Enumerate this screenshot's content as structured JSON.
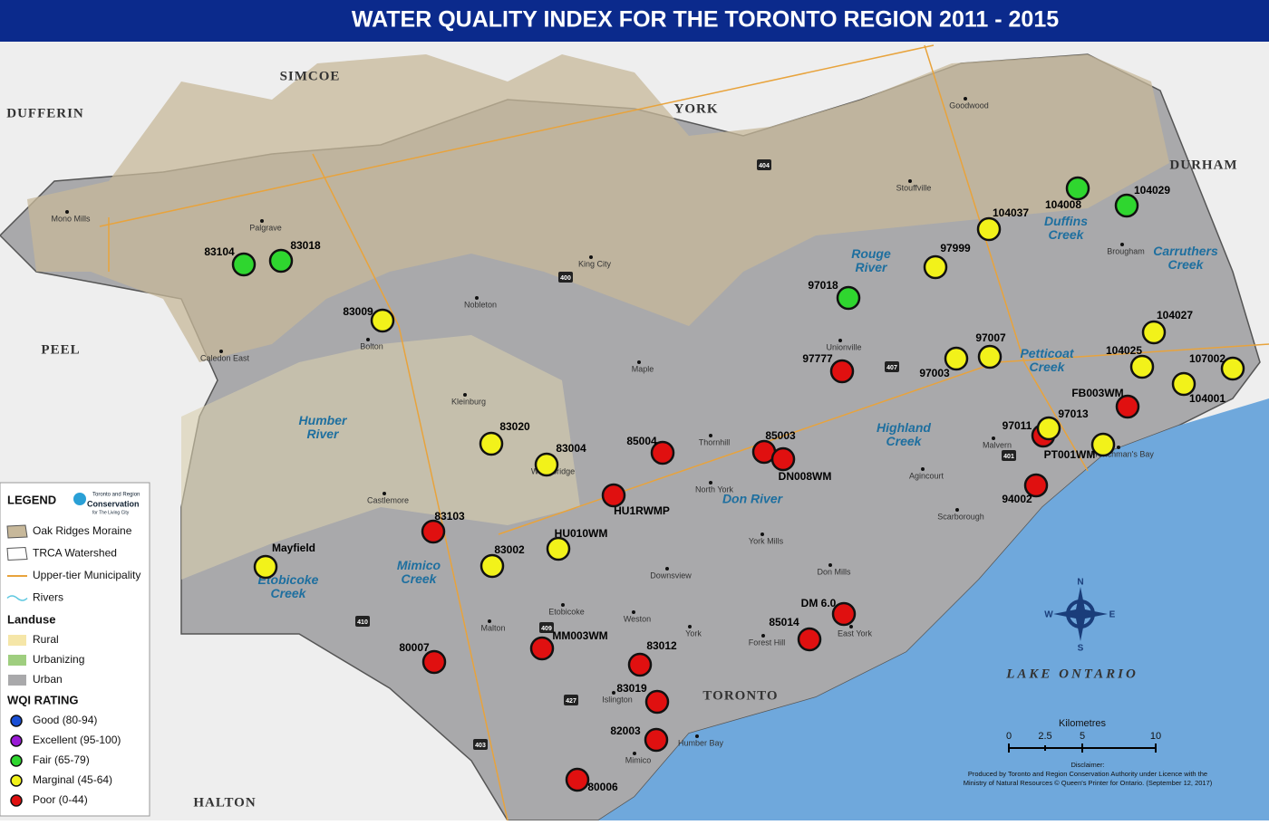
{
  "title": "WATER QUALITY INDEX FOR THE TORONTO REGION 2011 - 2015",
  "regions": [
    "SIMCOE",
    "YORK",
    "DUFFERIN",
    "DURHAM",
    "PEEL",
    "HALTON",
    "TORONTO",
    "LAKE ONTARIO"
  ],
  "rivers": [
    "Humber River",
    "Mimico Creek",
    "Etobicoke Creek",
    "Don River",
    "Rouge River",
    "Duffins Creek",
    "Carruthers Creek",
    "Petticoat Creek",
    "Highland Creek"
  ],
  "towns": [
    "Mono Mills",
    "Palgrave",
    "Caledon East",
    "Bolton",
    "Nobleton",
    "King City",
    "Kleinburg",
    "Maple",
    "Woodbridge",
    "Thornhill",
    "Stouffville",
    "Goodwood",
    "Brougham",
    "Unionville",
    "Malvern",
    "Agincourt",
    "Scarborough",
    "North York",
    "York Mills",
    "Don Mills",
    "Downsview",
    "Weston",
    "York",
    "Forest Hill",
    "East York",
    "Etobicoke",
    "Malton",
    "Islington",
    "Mimico",
    "Castlemore",
    "Humber Bay",
    "Frenchman's Bay"
  ],
  "highways": [
    "404",
    "400",
    "407",
    "410",
    "401",
    "427",
    "403",
    "409"
  ],
  "stations": [
    {
      "label": "83104",
      "color": "#2fd62f"
    },
    {
      "label": "83018",
      "color": "#2fd62f"
    },
    {
      "label": "83009",
      "color": "#f2f21a"
    },
    {
      "label": "83020",
      "color": "#f2f21a"
    },
    {
      "label": "83004",
      "color": "#f2f21a"
    },
    {
      "label": "85004",
      "color": "#e01010"
    },
    {
      "label": "85003",
      "color": "#e01010"
    },
    {
      "label": "DN008WM",
      "color": "#e01010"
    },
    {
      "label": "HU1RWMP",
      "color": "#e01010"
    },
    {
      "label": "83103",
      "color": "#e01010"
    },
    {
      "label": "83002",
      "color": "#f2f21a"
    },
    {
      "label": "HU010WM",
      "color": "#f2f21a"
    },
    {
      "label": "Mayfield",
      "color": "#f2f21a"
    },
    {
      "label": "80007",
      "color": "#e01010"
    },
    {
      "label": "MM003WM",
      "color": "#e01010"
    },
    {
      "label": "83012",
      "color": "#e01010"
    },
    {
      "label": "83019",
      "color": "#e01010"
    },
    {
      "label": "82003",
      "color": "#e01010"
    },
    {
      "label": "80006",
      "color": "#e01010"
    },
    {
      "label": "85014",
      "color": "#e01010"
    },
    {
      "label": "DM 6.0",
      "color": "#e01010"
    },
    {
      "label": "97777",
      "color": "#e01010"
    },
    {
      "label": "97018",
      "color": "#2fd62f"
    },
    {
      "label": "97999",
      "color": "#f2f21a"
    },
    {
      "label": "104037",
      "color": "#f2f21a"
    },
    {
      "label": "104008",
      "color": "#2fd62f"
    },
    {
      "label": "104029",
      "color": "#2fd62f"
    },
    {
      "label": "97003",
      "color": "#f2f21a"
    },
    {
      "label": "97007",
      "color": "#f2f21a"
    },
    {
      "label": "97011",
      "color": "#e01010"
    },
    {
      "label": "97013",
      "color": "#f2f21a"
    },
    {
      "label": "PT001WM",
      "color": "#f2f21a"
    },
    {
      "label": "FB003WM",
      "color": "#e01010"
    },
    {
      "label": "104027",
      "color": "#f2f21a"
    },
    {
      "label": "104025",
      "color": "#f2f21a"
    },
    {
      "label": "107002",
      "color": "#f2f21a"
    },
    {
      "label": "104001",
      "color": "#f2f21a"
    },
    {
      "label": "94002",
      "color": "#e01010"
    }
  ],
  "legend": {
    "title": "LEGEND",
    "logo": [
      "Toronto and Region",
      "Conservation",
      "for The Living City"
    ],
    "features": [
      {
        "label": "Oak Ridges Moraine",
        "color": "#c7b89a"
      },
      {
        "label": "TRCA Watershed",
        "color": "#ffffff"
      },
      {
        "label": "Upper-tier Municipality",
        "color": "#e8a33c"
      },
      {
        "label": "Rivers",
        "color": "#5ec8e0"
      }
    ],
    "landuse_title": "Landuse",
    "landuse": [
      {
        "label": "Rural",
        "color": "#f5e6a8"
      },
      {
        "label": "Urbanizing",
        "color": "#9fce7f"
      },
      {
        "label": "Urban",
        "color": "#a9a9ab"
      }
    ],
    "rating_title": "WQI RATING",
    "ratings": [
      {
        "label": "Good (80-94)",
        "color": "#1a4fd6"
      },
      {
        "label": "Excellent (95-100)",
        "color": "#9a1ad6"
      },
      {
        "label": "Fair (65-79)",
        "color": "#2fd62f"
      },
      {
        "label": "Marginal (45-64)",
        "color": "#f2f21a"
      },
      {
        "label": "Poor (0-44)",
        "color": "#e01010"
      }
    ]
  },
  "compass": [
    "N",
    "E",
    "S",
    "W"
  ],
  "scale": {
    "title": "Kilometres",
    "ticks": [
      "0",
      "2.5",
      "5",
      "10"
    ]
  },
  "disclaimer": [
    "Disclaimer:",
    "Produced by Toronto and Region Conservation Authority under Licence with the",
    "Ministry of Natural Resources © Queen's Printer for Ontario. (September 12, 2017)"
  ]
}
